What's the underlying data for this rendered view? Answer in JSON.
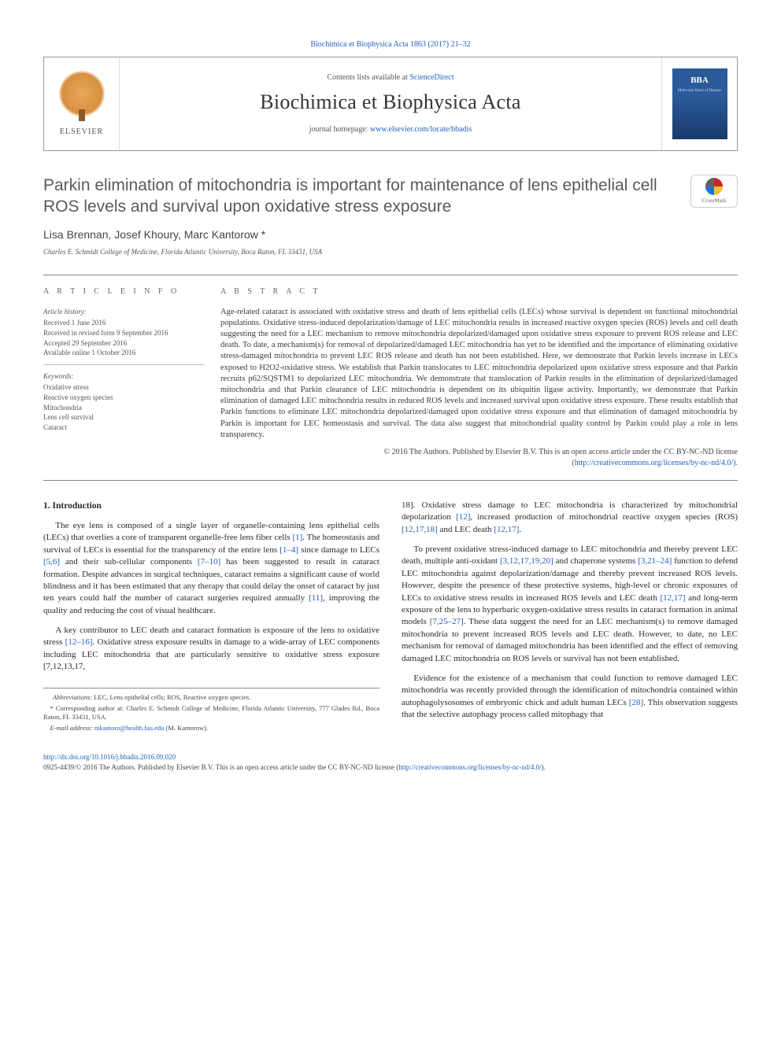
{
  "top_citation": "Biochimica et Biophysica Acta 1863 (2017) 21–32",
  "header": {
    "contents_prefix": "Contents lists available at ",
    "contents_link": "ScienceDirect",
    "journal": "Biochimica et Biophysica Acta",
    "homepage_prefix": "journal homepage: ",
    "homepage_link": "www.elsevier.com/locate/bbadis",
    "elsevier": "ELSEVIER",
    "cover_bba": "BBA",
    "cover_sub": "Molecular Basis of Disease"
  },
  "crossmark": "CrossMark",
  "title": "Parkin elimination of mitochondria is important for maintenance of lens epithelial cell ROS levels and survival upon oxidative stress exposure",
  "authors": "Lisa Brennan, Josef Khoury, Marc Kantorow *",
  "affiliation": "Charles E. Schmidt College of Medicine, Florida Atlantic University, Boca Raton, FL 33431, USA",
  "meta": {
    "info_heading": "A R T I C L E   I N F O",
    "history_label": "Article history:",
    "history": [
      "Received 1 June 2016",
      "Received in revised form 9 September 2016",
      "Accepted 29 September 2016",
      "Available online 1 October 2016"
    ],
    "keywords_label": "Keywords:",
    "keywords": [
      "Oxidative stress",
      "Reactive oxygen species",
      "Mitochondria",
      "Lens cell survival",
      "Cataract"
    ]
  },
  "abstract": {
    "heading": "A B S T R A C T",
    "text": "Age-related cataract is associated with oxidative stress and death of lens epithelial cells (LECs) whose survival is dependent on functional mitochondrial populations. Oxidative stress-induced depolarization/damage of LEC mitochondria results in increased reactive oxygen species (ROS) levels and cell death suggesting the need for a LEC mechanism to remove mitochondria depolarized/damaged upon oxidative stress exposure to prevent ROS release and LEC death. To date, a mechanism(s) for removal of depolarized/damaged LEC mitochondria has yet to be identified and the importance of eliminating oxidative stress-damaged mitochondria to prevent LEC ROS release and death has not been established. Here, we demonstrate that Parkin levels increase in LECs exposed to H2O2-oxidative stress. We establish that Parkin translocates to LEC mitochondria depolarized upon oxidative stress exposure and that Parkin recruits p62/SQSTM1 to depolarized LEC mitochondria. We demonstrate that translocation of Parkin results in the elimination of depolarized/damaged mitochondria and that Parkin clearance of LEC mitochondria is dependent on its ubiquitin ligase activity. Importantly, we demonstrate that Parkin elimination of damaged LEC mitochondria results in reduced ROS levels and increased survival upon oxidative stress exposure. These results establish that Parkin functions to eliminate LEC mitochondria depolarized/damaged upon oxidative stress exposure and that elimination of damaged mitochondria by Parkin is important for LEC homeostasis and survival. The data also suggest that mitochondrial quality control by Parkin could play a role in lens transparency.",
    "copyright_line1": "© 2016 The Authors. Published by Elsevier B.V. This is an open access article under the CC BY-NC-ND license",
    "copyright_link": "(http://creativecommons.org/licenses/by-nc-nd/4.0/)."
  },
  "body": {
    "section_head": "1. Introduction",
    "left": [
      "The eye lens is composed of a single layer of organelle-containing lens epithelial cells (LECs) that overlies a core of transparent organelle-free lens fiber cells [1]. The homeostasis and survival of LECs is essential for the transparency of the entire lens [1–4] since damage to LECs [5,6] and their sub-cellular components [7–10] has been suggested to result in cataract formation. Despite advances in surgical techniques, cataract remains a significant cause of world blindness and it has been estimated that any therapy that could delay the onset of cataract by just ten years could half the number of cataract surgeries required annually [11], improving the quality and reducing the cost of visual healthcare.",
      "A key contributor to LEC death and cataract formation is exposure of the lens to oxidative stress [12–16]. Oxidative stress exposure results in damage to a wide-array of LEC components including LEC mitochondria that are particularly sensitive to oxidative stress exposure [7,12,13,17,"
    ],
    "right": [
      "18]. Oxidative stress damage to LEC mitochondria is characterized by mitochondrial depolarization [12], increased production of mitochondrial reactive oxygen species (ROS) [12,17,18] and LEC death [12,17].",
      "To prevent oxidative stress-induced damage to LEC mitochondria and thereby prevent LEC death, multiple anti-oxidant [3,12,17,19,20] and chaperone systems [3,21–24] function to defend LEC mitochondria against depolarization/damage and thereby prevent increased ROS levels. However, despite the presence of these protective systems, high-level or chronic exposures of LECs to oxidative stress results in increased ROS levels and LEC death [12,17] and long-term exposure of the lens to hyperbaric oxygen-oxidative stress results in cataract formation in animal models [7,25–27]. These data suggest the need for an LEC mechanism(s) to remove damaged mitochondria to prevent increased ROS levels and LEC death. However, to date, no LEC mechanism for removal of damaged mitochondria has been identified and the effect of removing damaged LEC mitochondria on ROS levels or survival has not been established.",
      "Evidence for the existence of a mechanism that could function to remove damaged LEC mitochondria was recently provided through the identification of mitochondria contained within autophagolysosomes of embryonic chick and adult human LECs [28]. This observation suggests that the selective autophagy process called mitophagy that"
    ]
  },
  "footnotes": {
    "abbrev_label": "Abbreviations:",
    "abbrev": " LEC, Lens epithelial cells; ROS, Reactive oxygen species.",
    "corr": "* Corresponding author at: Charles E. Schmidt College of Medicine, Florida Atlantic University, 777 Glades Rd., Boca Raton, FL 33431, USA.",
    "email_label": "E-mail address:",
    "email": " mkantoro@health.fau.edu",
    "email_suffix": " (M. Kantorow)."
  },
  "footer": {
    "doi": "http://dx.doi.org/10.1016/j.bbadis.2016.09.020",
    "issn_line": "0925-4439/© 2016 The Authors. Published by Elsevier B.V. This is an open access article under the CC BY-NC-ND license (",
    "issn_link": "http://creativecommons.org/licenses/by-nc-nd/4.0/",
    "issn_suffix": ")."
  },
  "colors": {
    "link": "#2060c0",
    "rule": "#888888",
    "text": "#3a3a3a",
    "cover_blue": "#2a5a9a"
  }
}
